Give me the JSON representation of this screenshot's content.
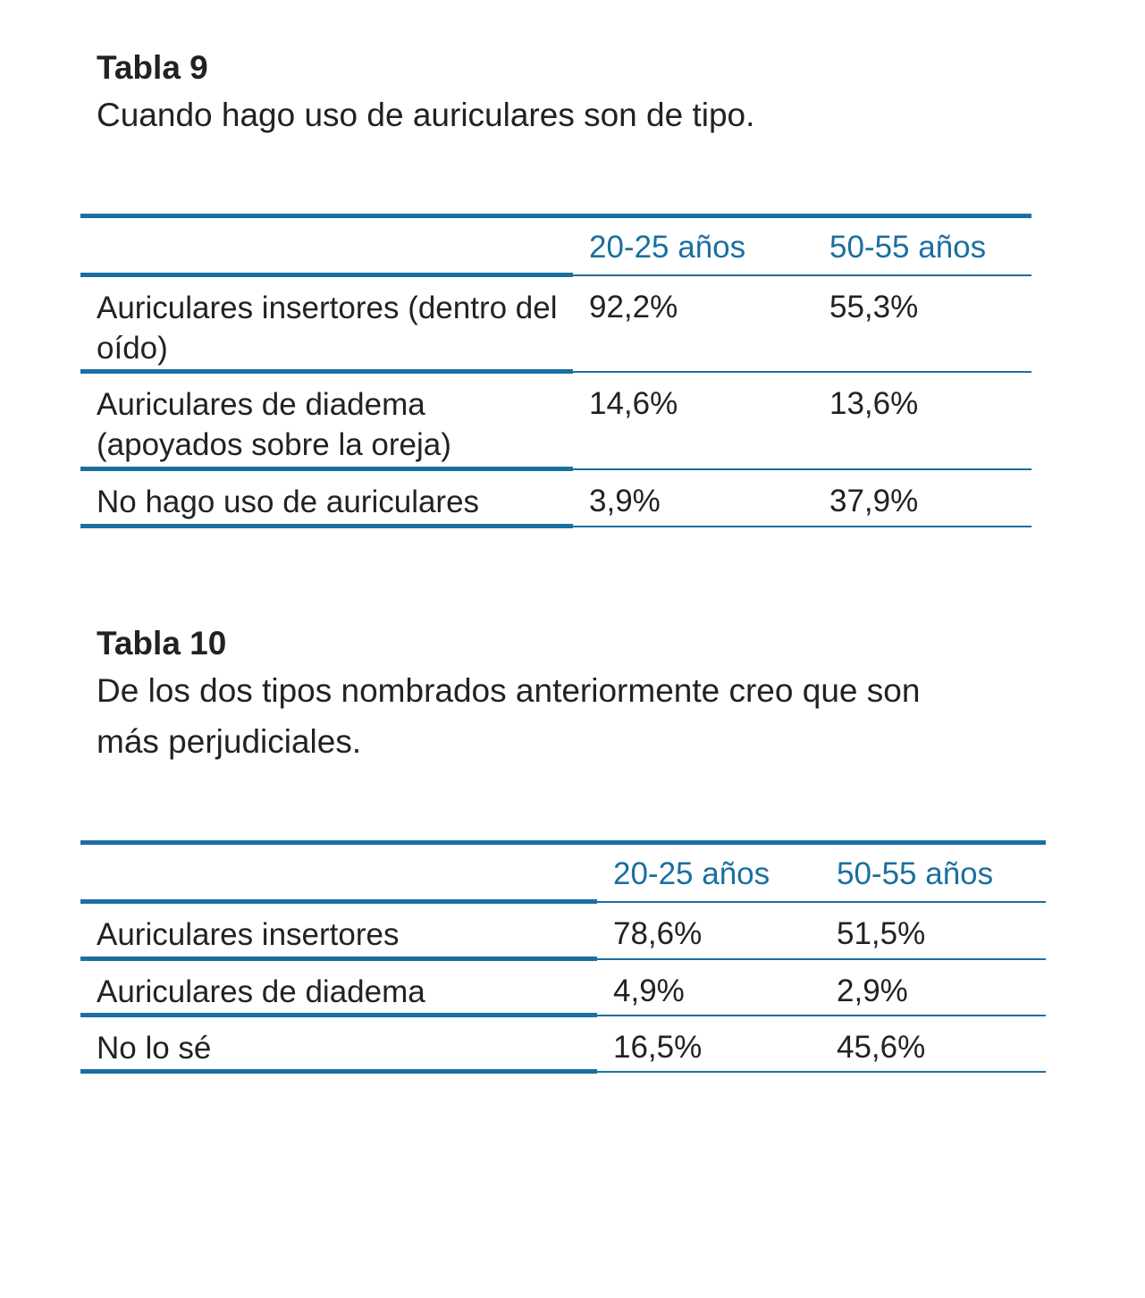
{
  "tables": [
    {
      "title": "Tabla 9",
      "subtitle": "Cuando hago uso de auriculares son de tipo.",
      "headers": [
        "",
        "20-25 años",
        "50-55 años"
      ],
      "rows": [
        {
          "label": "Auriculares insertores (dentro del oído)",
          "values": [
            "92,2%",
            "55,3%"
          ]
        },
        {
          "label": "Auriculares de diadema (apoyados sobre la oreja)",
          "values": [
            "14,6%",
            "13,6%"
          ]
        },
        {
          "label": "No hago uso de auriculares",
          "values": [
            "3,9%",
            "37,9%"
          ]
        }
      ]
    },
    {
      "title": "Tabla 10",
      "subtitle": "De los dos tipos nombrados anteriormente creo que son más perjudiciales.",
      "headers": [
        "",
        "20-25 años",
        "50-55 años"
      ],
      "rows": [
        {
          "label": "Auriculares insertores",
          "values": [
            "78,6%",
            "51,5%"
          ]
        },
        {
          "label": "Auriculares de diadema",
          "values": [
            "4,9%",
            "2,9%"
          ]
        },
        {
          "label": "No lo sé",
          "values": [
            "16,5%",
            "45,6%"
          ]
        }
      ]
    }
  ],
  "accent_color": "#1a6fa0"
}
